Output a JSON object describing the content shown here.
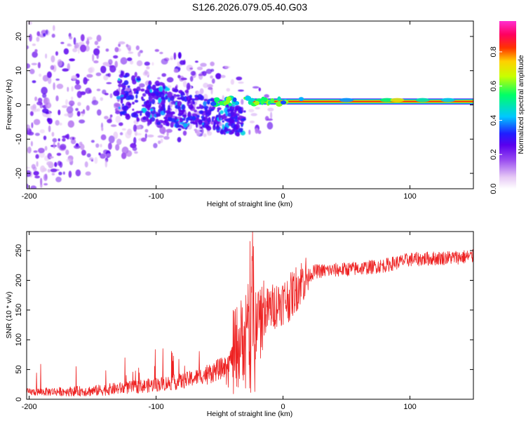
{
  "title": "S126.2026.079.05.40.G03",
  "chart_data": [
    {
      "type": "heatmap",
      "name": "spectrogram",
      "xlabel": "Height of straight line (km)",
      "ylabel": "Frequency (Hz)",
      "xlim": [
        -202,
        150
      ],
      "ylim": [
        -24.5,
        24.5
      ],
      "xticks": [
        -200,
        -100,
        0,
        100
      ],
      "yticks": [
        -20,
        -10,
        0,
        10,
        20
      ],
      "colorbar": {
        "label": "Normalized spectral amplitude",
        "range": [
          0,
          0.98
        ],
        "ticks": [
          "0.0",
          "0.2",
          "0.4",
          "0.6",
          "0.8"
        ],
        "tick_values": [
          0.0,
          0.2,
          0.4,
          0.6,
          0.8
        ],
        "colors": [
          "#ffffff",
          "#e6c8f5",
          "#9a4df0",
          "#5a00ee",
          "#1f1fff",
          "#00c8ff",
          "#00ff66",
          "#c8ff00",
          "#ffd000",
          "#ff3300",
          "#ff0060",
          "#ff2ed0"
        ]
      },
      "tone_band": {
        "freq": 1.0,
        "start": -25,
        "end": 150,
        "amplitude": 0.85
      },
      "diffuse_band": {
        "start": -202,
        "end": -30,
        "spread_at_start": 24,
        "spread_at_end": 8
      }
    },
    {
      "type": "line",
      "name": "snr",
      "xlabel": "Height of straight line (km)",
      "ylabel": "SNR (10 * v/v)",
      "xlim": [
        -202,
        150
      ],
      "ylim": [
        0,
        282
      ],
      "xticks": [
        -200,
        -100,
        0,
        100
      ],
      "yticks": [
        0,
        50,
        100,
        150,
        200,
        250
      ],
      "color": "#ee2222",
      "trend_points": [
        {
          "x": -202,
          "y": 12
        },
        {
          "x": -150,
          "y": 14
        },
        {
          "x": -110,
          "y": 22
        },
        {
          "x": -80,
          "y": 30
        },
        {
          "x": -60,
          "y": 42
        },
        {
          "x": -45,
          "y": 55
        },
        {
          "x": -35,
          "y": 90
        },
        {
          "x": -25,
          "y": 130
        },
        {
          "x": -15,
          "y": 145
        },
        {
          "x": -5,
          "y": 160
        },
        {
          "x": 5,
          "y": 170
        },
        {
          "x": 15,
          "y": 200
        },
        {
          "x": 25,
          "y": 215
        },
        {
          "x": 60,
          "y": 220
        },
        {
          "x": 80,
          "y": 225
        },
        {
          "x": 100,
          "y": 235
        },
        {
          "x": 150,
          "y": 240
        }
      ]
    }
  ]
}
